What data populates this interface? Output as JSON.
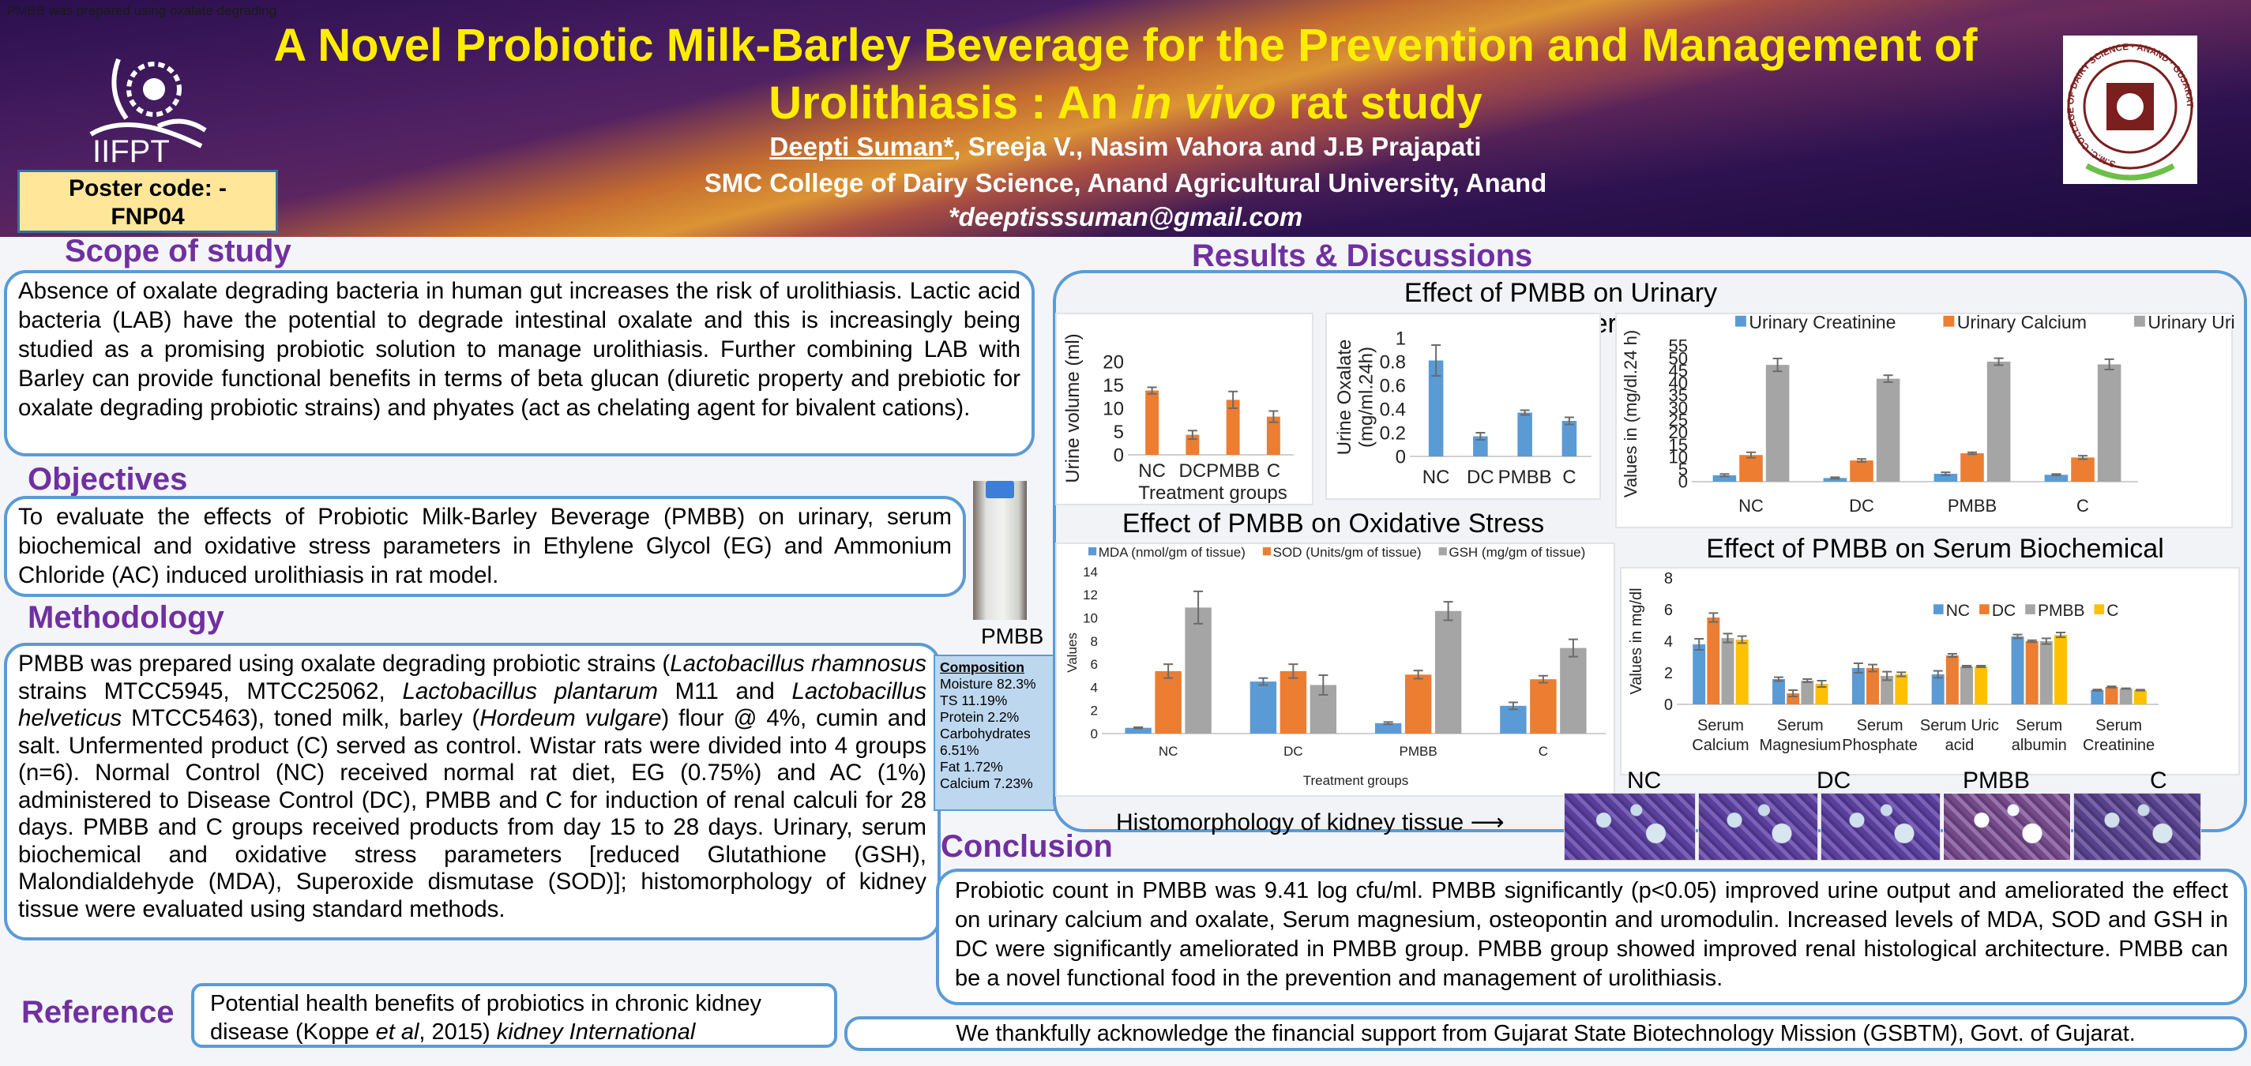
{
  "top_note": "PMBB was prepared using oxalate degrading",
  "header": {
    "title_line1": "A Novel Probiotic Milk-Barley Beverage for the Prevention and Management of",
    "title_line2_pre": "Urolithiasis : An ",
    "title_line2_em": "in vivo",
    "title_line2_post": " rat study",
    "author_presenting": "Deepti Suman*",
    "authors_rest": ", Sreeja V., Nasim Vahora and J.B Prajapati",
    "affiliation": "SMC College of Dairy Science, Anand Agricultural University, Anand",
    "email": "*deeptisssuman@gmail.com",
    "poster_code_line1": "Poster code: -",
    "poster_code_line2": "FNP04",
    "left_logo_text": "IIFPT",
    "right_logo_text": "S.M.C. COLLEGE OF DAIRY SCIENCE · ANAND · GUJARAT"
  },
  "scope": {
    "heading": "Scope of study",
    "text": "Absence of oxalate degrading bacteria in human gut increases the risk of urolithiasis. Lactic acid bacteria (LAB) have the potential to degrade intestinal oxalate and this is increasingly being studied as a promising probiotic solution to manage urolithiasis. Further combining LAB with Barley can provide functional benefits in terms of beta glucan (diuretic property and prebiotic for oxalate degrading probiotic strains) and phyates (act as chelating agent for bivalent cations)."
  },
  "objectives": {
    "heading": "Objectives",
    "text": "To evaluate the effects of Probiotic Milk-Barley Beverage (PMBB) on urinary, serum biochemical and oxidative stress parameters in Ethylene Glycol (EG) and Ammonium Chloride (AC) induced urolithiasis in rat model."
  },
  "product": {
    "label": "PMBB",
    "composition_title": "Composition",
    "composition": [
      "Moisture 82.3%",
      "TS 11.19%",
      "Protein 2.2%",
      "Carbohydrates 6.51%",
      "Fat 1.72%",
      "Calcium 7.23%"
    ]
  },
  "methodology": {
    "heading": "Methodology",
    "segments": [
      {
        "t": "PMBB was prepared using oxalate degrading probiotic strains (",
        "em": false
      },
      {
        "t": "Lactobacillus rhamnosus",
        "em": true
      },
      {
        "t": " strains MTCC5945, MTCC25062, ",
        "em": false
      },
      {
        "t": "Lactobacillus plantarum",
        "em": true
      },
      {
        "t": " M11 and ",
        "em": false
      },
      {
        "t": "Lactobacillus helveticus",
        "em": true
      },
      {
        "t": " MTCC5463), toned milk, barley (",
        "em": false
      },
      {
        "t": "Hordeum vulgare",
        "em": true
      },
      {
        "t": ") flour @ 4%, cumin and salt. Unfermented product (C) served as control. Wistar rats were divided into 4 groups (n=6). Normal Control (NC) received normal rat diet, EG (0.75%) and AC (1%) administered to Disease Control (DC), PMBB and C for induction of renal calculi for 28 days. PMBB and C groups received products from day 15 to 28 days. Urinary, serum biochemical and oxidative stress parameters [reduced Glutathione (GSH), Malondialdehyde (MDA), Superoxide dismutase (SOD)]; histomorphology of kidney tissue were evaluated using standard methods.",
        "em": false
      }
    ]
  },
  "reference": {
    "heading": "Reference",
    "segments": [
      {
        "t": "Potential health benefits of probiotics in chronic kidney disease (Koppe ",
        "em": false
      },
      {
        "t": "et al",
        "em": true
      },
      {
        "t": ", 2015) ",
        "em": false
      },
      {
        "t": "kidney International",
        "em": true
      }
    ]
  },
  "results": {
    "heading": "Results & Discussions",
    "urinary_title": "Effect of PMBB on Urinary Parameters",
    "oxidative_title": "Effect of PMBB on Oxidative Stress Parameters",
    "serum_title": "Effect of PMBB on Serum Biochemical Parameters",
    "histo_caption": "Histomorphology of kidney tissue",
    "histo_groups": [
      "NC",
      "DC",
      "PMBB",
      "C"
    ]
  },
  "conclusion": {
    "heading": "Conclusion",
    "text": "Probiotic count in PMBB was 9.41 log cfu/ml. PMBB significantly (p<0.05) improved urine output and ameliorated the effect on urinary calcium and oxalate, Serum magnesium, osteopontin and uromodulin. Increased levels of MDA, SOD and GSH in DC were significantly ameliorated in PMBB group. PMBB group showed improved renal histological architecture. PMBB can be a novel functional food in the prevention and management of urolithiasis."
  },
  "acknowledgement": "We thankfully acknowledge the financial support from Gujarat State Biotechnology Mission (GSBTM), Govt. of Gujarat.",
  "colors": {
    "blue": "#5b9bd5",
    "orange": "#ed7d31",
    "gray": "#a5a5a5",
    "yellow": "#ffc000",
    "heading": "#7030a0",
    "title": "#ffed00"
  },
  "chart_data": [
    {
      "type": "bar",
      "title": "",
      "ylabel": "Urine volume (ml)",
      "xlabel": "Treatment groups",
      "categories": [
        "NC",
        "DC",
        "PMBB",
        "C"
      ],
      "ylim": [
        0,
        20
      ],
      "yticks": [
        0,
        5,
        10,
        15,
        20
      ],
      "legend": false,
      "series": [
        {
          "name": "Urine volume",
          "color": "#ed7d31",
          "values": [
            13.8,
            4.3,
            11.8,
            8.2
          ],
          "errors": [
            0.7,
            0.9,
            1.8,
            1.2
          ]
        }
      ]
    },
    {
      "type": "bar",
      "title": "",
      "ylabel": "Urine Oxalate\n(mg/ml.24h)",
      "xlabel": "",
      "categories": [
        "NC",
        "DC",
        "PMBB",
        "C"
      ],
      "ylim": [
        0,
        1
      ],
      "yticks": [
        0,
        0.2,
        0.4,
        0.6,
        0.8,
        1
      ],
      "legend": false,
      "series": [
        {
          "name": "Urine Oxalate",
          "color": "#5b9bd5",
          "values": [
            0.81,
            0.17,
            0.37,
            0.3
          ],
          "errors": [
            0.13,
            0.03,
            0.02,
            0.03
          ]
        }
      ]
    },
    {
      "type": "bar",
      "title": "",
      "ylabel": "Values in (mg/dl.24 h)",
      "xlabel": "",
      "categories": [
        "NC",
        "DC",
        "PMBB",
        "C"
      ],
      "ylim": [
        0,
        55
      ],
      "yticks": [
        0,
        5,
        10,
        15,
        20,
        25,
        30,
        35,
        40,
        45,
        50,
        55
      ],
      "legend": true,
      "legend_position": "top",
      "series": [
        {
          "name": "Urinary Creatinine",
          "color": "#5b9bd5",
          "values": [
            2.6,
            1.5,
            3.2,
            2.8
          ],
          "errors": [
            0.5,
            0.3,
            0.6,
            0.3
          ]
        },
        {
          "name": "Urinary Calcium",
          "color": "#ed7d31",
          "values": [
            10.8,
            8.6,
            11.5,
            9.8
          ],
          "errors": [
            1.1,
            0.6,
            0.4,
            0.7
          ]
        },
        {
          "name": "Urinary Uric acid",
          "color": "#a5a5a5",
          "values": [
            47.3,
            41.7,
            48.6,
            47.5
          ],
          "errors": [
            2.6,
            1.4,
            1.4,
            2.1
          ]
        }
      ]
    },
    {
      "type": "bar",
      "title": "",
      "ylabel": "Values",
      "xlabel": "Treatment groups",
      "categories": [
        "NC",
        "DC",
        "PMBB",
        "C"
      ],
      "ylim": [
        0,
        14
      ],
      "yticks": [
        0,
        2,
        4,
        6,
        8,
        10,
        12,
        14
      ],
      "legend": true,
      "legend_position": "top",
      "series": [
        {
          "name": "MDA (nmol/gm of tissue)",
          "color": "#5b9bd5",
          "values": [
            0.5,
            4.5,
            0.9,
            2.4
          ],
          "errors": [
            0.05,
            0.3,
            0.1,
            0.3
          ]
        },
        {
          "name": "SOD (Units/gm of tissue)",
          "color": "#ed7d31",
          "values": [
            5.4,
            5.4,
            5.1,
            4.7
          ],
          "errors": [
            0.6,
            0.6,
            0.35,
            0.3
          ]
        },
        {
          "name": "GSH (mg/gm of tissue)",
          "color": "#a5a5a5",
          "values": [
            10.9,
            4.2,
            10.6,
            7.4
          ],
          "errors": [
            1.4,
            0.85,
            0.8,
            0.75
          ]
        }
      ]
    },
    {
      "type": "bar",
      "title": "",
      "ylabel": "Values in mg/dl",
      "xlabel": "",
      "categories": [
        "Serum\nCalcium",
        "Serum\nMagnesium",
        "Serum\nPhosphate",
        "Serum Uric\nacid",
        "Serum\nalbumin",
        "Serum\nCreatinine"
      ],
      "ylim": [
        0,
        8
      ],
      "yticks": [
        0,
        2,
        4,
        6,
        8
      ],
      "legend": true,
      "legend_position": "top-right",
      "series": [
        {
          "name": "NC",
          "color": "#5b9bd5",
          "values": [
            3.8,
            1.6,
            2.3,
            1.9,
            4.3,
            0.9
          ],
          "errors": [
            0.35,
            0.12,
            0.3,
            0.22,
            0.12,
            0.04
          ]
        },
        {
          "name": "DC",
          "color": "#ed7d31",
          "values": [
            5.5,
            0.7,
            2.3,
            3.1,
            4.0,
            1.1
          ],
          "errors": [
            0.28,
            0.2,
            0.22,
            0.1,
            0.06,
            0.04
          ]
        },
        {
          "name": "PMBB",
          "color": "#a5a5a5",
          "values": [
            4.2,
            1.5,
            1.8,
            2.4,
            4.0,
            1.0
          ],
          "errors": [
            0.28,
            0.1,
            0.27,
            0.05,
            0.18,
            0.02
          ]
        },
        {
          "name": "C",
          "color": "#ffc000",
          "values": [
            4.1,
            1.3,
            1.9,
            2.4,
            4.4,
            0.9
          ],
          "errors": [
            0.22,
            0.2,
            0.13,
            0.05,
            0.15,
            0.03
          ]
        }
      ]
    }
  ]
}
